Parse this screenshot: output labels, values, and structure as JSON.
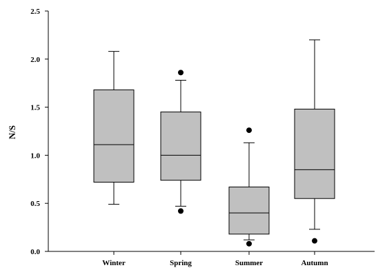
{
  "chart_data": {
    "type": "box",
    "xlabel": "",
    "ylabel": "N/S",
    "ylim": [
      0.0,
      2.5
    ],
    "yticks": [
      "0.0",
      "0.5",
      "1.0",
      "1.5",
      "2.0",
      "2.5"
    ],
    "grid": false,
    "legend": false,
    "box_color": "#c0c0c0",
    "line_color": "#000000",
    "categories": [
      "Winter",
      "Spring",
      "Summer",
      "Autumn"
    ],
    "boxes": [
      {
        "category": "Winter",
        "whisker_low": 0.49,
        "q1": 0.72,
        "median": 1.11,
        "q3": 1.68,
        "whisker_high": 2.08,
        "outliers": []
      },
      {
        "category": "Spring",
        "whisker_low": 0.47,
        "q1": 0.74,
        "median": 1.0,
        "q3": 1.45,
        "whisker_high": 1.78,
        "outliers": [
          1.86,
          0.42
        ]
      },
      {
        "category": "Summer",
        "whisker_low": 0.12,
        "q1": 0.18,
        "median": 0.4,
        "q3": 0.67,
        "whisker_high": 1.13,
        "outliers": [
          1.26,
          0.08
        ]
      },
      {
        "category": "Autumn",
        "whisker_low": 0.23,
        "q1": 0.55,
        "median": 0.85,
        "q3": 1.48,
        "whisker_high": 2.2,
        "outliers": [
          0.11
        ]
      }
    ]
  }
}
